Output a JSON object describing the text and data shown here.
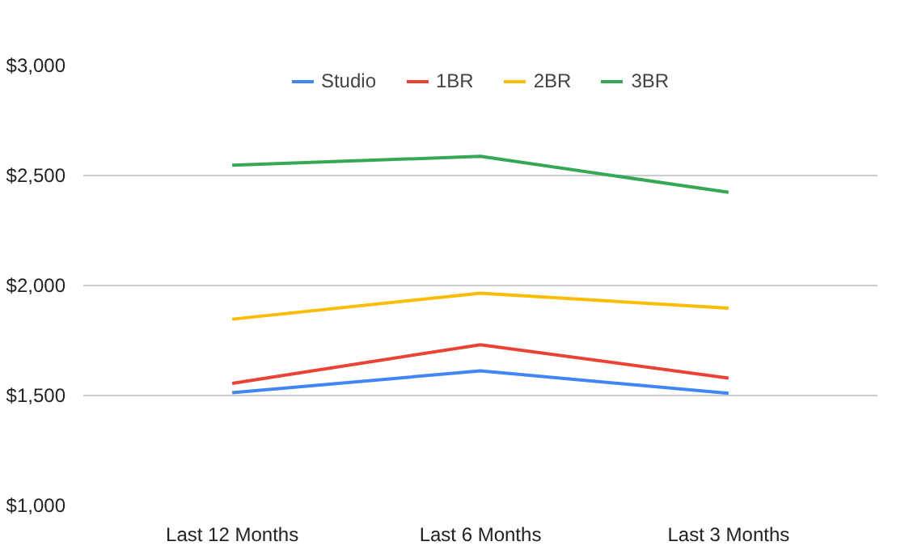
{
  "chart_data": {
    "type": "line",
    "categories": [
      "Last 12 Months",
      "Last 6 Months",
      "Last 3 Months"
    ],
    "series": [
      {
        "name": "Studio",
        "color": "#4285f4",
        "values": [
          1513,
          1612,
          1510
        ]
      },
      {
        "name": "1BR",
        "color": "#ea4335",
        "values": [
          1555,
          1731,
          1579
        ]
      },
      {
        "name": "2BR",
        "color": "#fbbc04",
        "values": [
          1847,
          1965,
          1897
        ]
      },
      {
        "name": "3BR",
        "color": "#34a853",
        "values": [
          2547,
          2587,
          2424
        ]
      }
    ],
    "ylim": [
      1000,
      3000
    ],
    "yticks": [
      {
        "value": 1000,
        "label": "$1,000"
      },
      {
        "value": 1500,
        "label": "$1,500"
      },
      {
        "value": 2000,
        "label": "$2,000"
      },
      {
        "value": 2500,
        "label": "$2,500"
      },
      {
        "value": 3000,
        "label": "$3,000"
      }
    ],
    "grid": "y",
    "legend": "top",
    "marker": "none",
    "line_style": "solid"
  }
}
